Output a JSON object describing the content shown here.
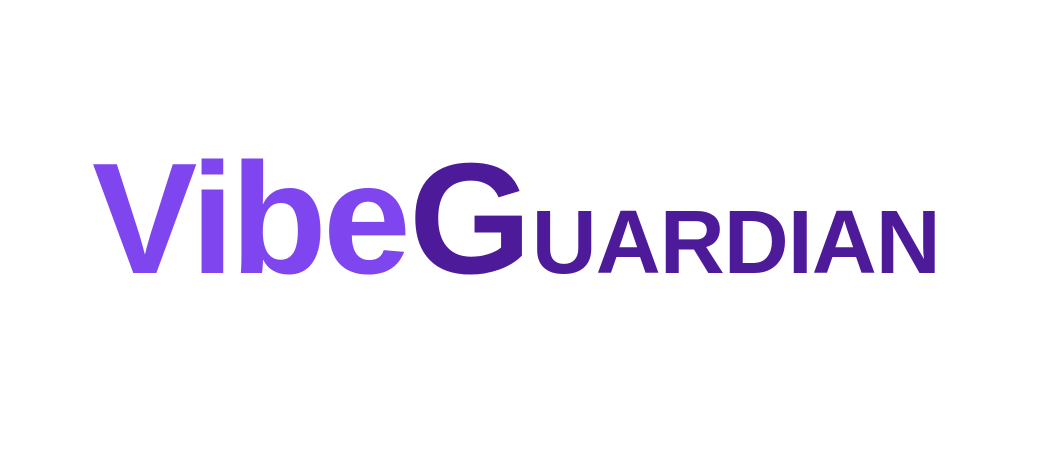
{
  "logo": {
    "part1": "Vibe",
    "part2": "G",
    "part3": "UARDIAN",
    "colors": {
      "vibe": "#7f45ee",
      "guardian": "#4d1a99",
      "background": "#ffffff"
    }
  }
}
